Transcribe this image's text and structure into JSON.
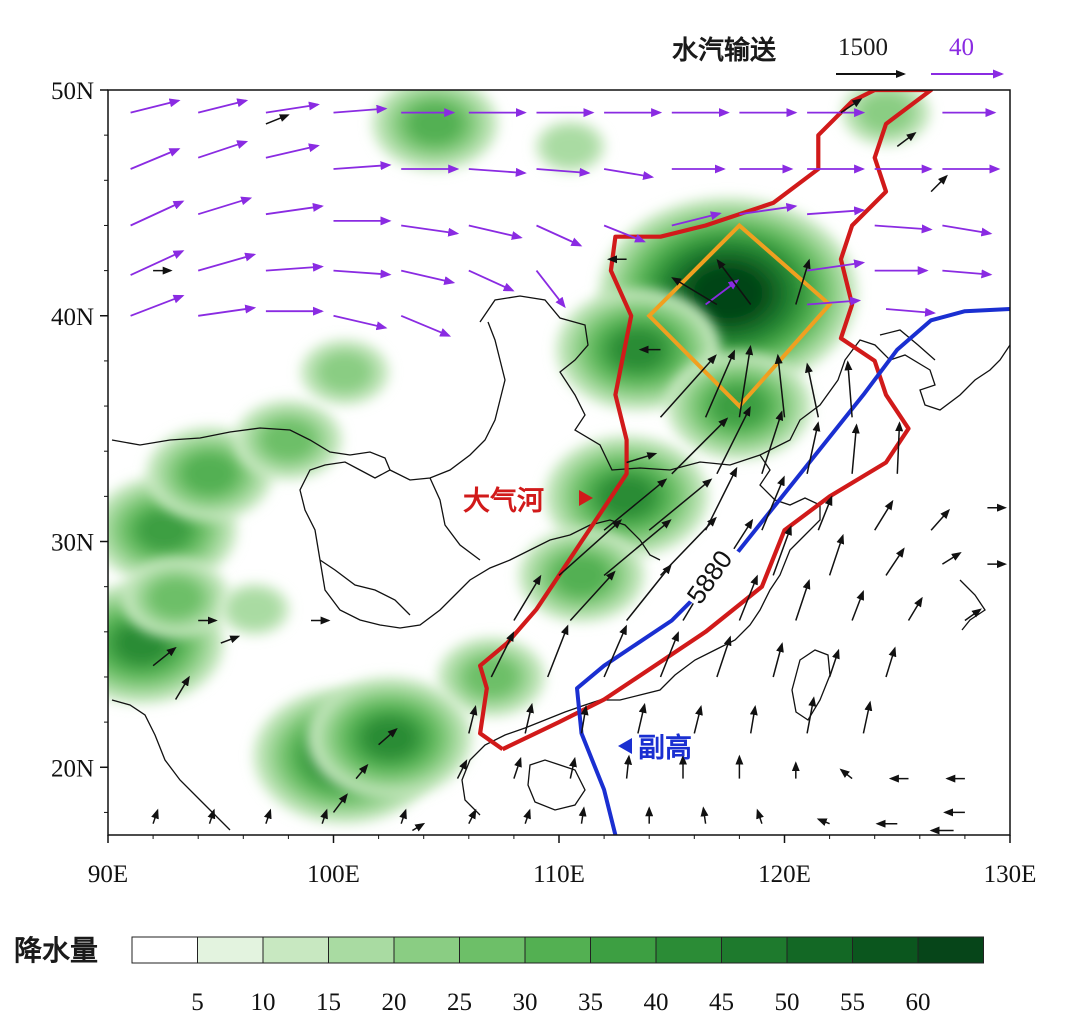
{
  "reference": {
    "title": "水汽输送",
    "black_value": "1500",
    "purple_value": "40",
    "black_color": "#111111",
    "purple_color": "#8a2be2"
  },
  "axes": {
    "lon_min": 90,
    "lon_max": 130,
    "lat_min": 17,
    "lat_max": 50,
    "x_ticks": [
      {
        "value": 90,
        "label": "90E"
      },
      {
        "value": 100,
        "label": "100E"
      },
      {
        "value": 110,
        "label": "110E"
      },
      {
        "value": 120,
        "label": "120E"
      },
      {
        "value": 130,
        "label": "130E"
      }
    ],
    "y_ticks": [
      {
        "value": 20,
        "label": "20N"
      },
      {
        "value": 30,
        "label": "30N"
      },
      {
        "value": 40,
        "label": "40N"
      },
      {
        "value": 50,
        "label": "50N"
      }
    ]
  },
  "annotations": {
    "atmospheric_river": "大气河",
    "subtropical_high": "副高",
    "contour_value": "5880"
  },
  "colors": {
    "atmospheric_river": "#d11a1a",
    "subtropical_high": "#1a2fd1",
    "focus_box": "#f0a020",
    "coastline": "#111111"
  },
  "colorbar": {
    "title": "降水量",
    "labels": [
      "5",
      "10",
      "15",
      "20",
      "25",
      "30",
      "35",
      "40",
      "45",
      "50",
      "55",
      "60"
    ],
    "colors": [
      "#ffffff",
      "#e3f3df",
      "#c8e8c1",
      "#a9dba2",
      "#8acd83",
      "#6dbf68",
      "#53b052",
      "#3d9f42",
      "#2b8c36",
      "#1e7a2d",
      "#136825",
      "#0b561e",
      "#064519"
    ]
  },
  "chart_data": {
    "type": "map",
    "precipitation_centers": [
      {
        "lon": 117.5,
        "lat": 41.0,
        "level": 60
      },
      {
        "lon": 113.5,
        "lat": 38.5,
        "level": 35
      },
      {
        "lon": 118.0,
        "lat": 36.0,
        "level": 30
      },
      {
        "lon": 113.0,
        "lat": 32.0,
        "level": 35
      },
      {
        "lon": 111.0,
        "lat": 28.5,
        "level": 25
      },
      {
        "lon": 107.0,
        "lat": 24.0,
        "level": 20
      },
      {
        "lon": 100.5,
        "lat": 20.5,
        "level": 40
      },
      {
        "lon": 102.5,
        "lat": 21.3,
        "level": 35
      },
      {
        "lon": 92.5,
        "lat": 30.5,
        "level": 30
      },
      {
        "lon": 94.5,
        "lat": 33.0,
        "level": 25
      },
      {
        "lon": 98.0,
        "lat": 34.5,
        "level": 20
      },
      {
        "lon": 100.5,
        "lat": 37.5,
        "level": 15
      },
      {
        "lon": 91.5,
        "lat": 25.5,
        "level": 35
      },
      {
        "lon": 93.0,
        "lat": 27.5,
        "level": 20
      },
      {
        "lon": 104.5,
        "lat": 48.5,
        "level": 25
      },
      {
        "lon": 110.5,
        "lat": 47.5,
        "level": 10
      },
      {
        "lon": 124.5,
        "lat": 49.0,
        "level": 15
      },
      {
        "lon": 96.5,
        "lat": 27.0,
        "level": 10
      }
    ],
    "atmospheric_river_outline": [
      [
        107.5,
        20.8
      ],
      [
        106.5,
        21.5
      ],
      [
        106.8,
        23.5
      ],
      [
        106.5,
        24.5
      ],
      [
        107.7,
        25.5
      ],
      [
        109.0,
        27.0
      ],
      [
        110.0,
        28.5
      ],
      [
        111.0,
        30.0
      ],
      [
        112.0,
        31.5
      ],
      [
        113.0,
        33.0
      ],
      [
        113.0,
        34.5
      ],
      [
        112.5,
        36.5
      ],
      [
        112.8,
        38.0
      ],
      [
        113.2,
        40.0
      ],
      [
        112.3,
        42.0
      ],
      [
        112.5,
        43.5
      ],
      [
        114.5,
        43.5
      ],
      [
        116.5,
        44.0
      ],
      [
        119.5,
        45.0
      ],
      [
        121.5,
        46.5
      ],
      [
        121.5,
        48.0
      ],
      [
        123.0,
        49.5
      ],
      [
        124.0,
        50.0
      ],
      [
        126.5,
        50.0
      ],
      [
        124.5,
        48.5
      ],
      [
        124.0,
        47.0
      ],
      [
        124.5,
        45.5
      ],
      [
        123.0,
        44.0
      ],
      [
        122.5,
        42.5
      ],
      [
        123.0,
        40.5
      ],
      [
        122.5,
        39.0
      ],
      [
        124.0,
        38.0
      ],
      [
        124.5,
        36.5
      ],
      [
        125.5,
        35.0
      ],
      [
        124.5,
        33.5
      ],
      [
        122.0,
        32.0
      ],
      [
        120.0,
        30.5
      ],
      [
        119.0,
        28.0
      ],
      [
        116.5,
        26.0
      ],
      [
        113.5,
        24.0
      ],
      [
        112.0,
        23.0
      ],
      [
        110.0,
        22.0
      ],
      [
        107.5,
        20.8
      ]
    ],
    "subtropical_high_5880": [
      [
        112.5,
        17.0
      ],
      [
        112.0,
        19.0
      ],
      [
        111.0,
        21.5
      ],
      [
        110.8,
        23.5
      ],
      [
        112.0,
        24.5
      ],
      [
        115.0,
        26.5
      ],
      [
        117.5,
        29.0
      ],
      [
        119.5,
        31.5
      ],
      [
        121.5,
        34.0
      ],
      [
        123.5,
        36.5
      ],
      [
        125.0,
        38.5
      ],
      [
        126.5,
        39.8
      ],
      [
        128.0,
        40.2
      ],
      [
        130.0,
        40.3
      ]
    ],
    "focus_box": [
      [
        114.0,
        40.0
      ],
      [
        118.0,
        44.0
      ],
      [
        122.0,
        40.5
      ],
      [
        118.0,
        36.0
      ]
    ],
    "vectors_purple": [
      [
        91,
        49,
        1.2,
        0.3
      ],
      [
        94,
        49,
        1.2,
        0.3
      ],
      [
        97,
        49,
        1.3,
        0.2
      ],
      [
        100,
        49,
        1.3,
        0.1
      ],
      [
        103,
        49,
        1.3,
        0.0
      ],
      [
        106,
        49,
        1.4,
        0.0
      ],
      [
        109,
        49,
        1.4,
        0.0
      ],
      [
        112,
        49,
        1.4,
        0.0
      ],
      [
        115,
        49,
        1.4,
        0.0
      ],
      [
        118,
        49,
        1.4,
        0.0
      ],
      [
        121,
        49,
        1.4,
        0.0
      ],
      [
        127,
        49,
        1.3,
        0.0
      ],
      [
        91,
        46.5,
        1.2,
        0.5
      ],
      [
        94,
        47,
        1.2,
        0.4
      ],
      [
        97,
        47,
        1.3,
        0.3
      ],
      [
        100,
        46.5,
        1.4,
        0.1
      ],
      [
        103,
        46.5,
        1.4,
        0.0
      ],
      [
        106,
        46.5,
        1.4,
        -0.1
      ],
      [
        109,
        46.5,
        1.3,
        -0.1
      ],
      [
        112,
        46.5,
        1.2,
        -0.2
      ],
      [
        115,
        46.5,
        1.3,
        0.0
      ],
      [
        118,
        46.5,
        1.3,
        0.0
      ],
      [
        121,
        46.5,
        1.4,
        0.0
      ],
      [
        124,
        46.5,
        1.4,
        0.0
      ],
      [
        127,
        46.5,
        1.4,
        0.0
      ],
      [
        91,
        44,
        1.3,
        0.6
      ],
      [
        94,
        44.5,
        1.3,
        0.4
      ],
      [
        97,
        44.5,
        1.4,
        0.2
      ],
      [
        100,
        44.2,
        1.4,
        0.0
      ],
      [
        103,
        44,
        1.4,
        -0.2
      ],
      [
        106,
        44,
        1.3,
        -0.3
      ],
      [
        109,
        44,
        1.1,
        -0.5
      ],
      [
        112,
        44,
        1.0,
        -0.4
      ],
      [
        115,
        44,
        1.2,
        0.3
      ],
      [
        118,
        44.5,
        1.4,
        0.2
      ],
      [
        121,
        44.5,
        1.4,
        0.1
      ],
      [
        124,
        44,
        1.4,
        -0.1
      ],
      [
        127,
        44,
        1.2,
        -0.2
      ],
      [
        91,
        41.8,
        1.3,
        0.6
      ],
      [
        94,
        42,
        1.4,
        0.4
      ],
      [
        97,
        42,
        1.4,
        0.1
      ],
      [
        100,
        42,
        1.4,
        -0.1
      ],
      [
        103,
        42,
        1.3,
        -0.3
      ],
      [
        106,
        42,
        1.1,
        -0.5
      ],
      [
        109,
        42,
        0.7,
        -0.9
      ],
      [
        121,
        42,
        1.4,
        0.2
      ],
      [
        124,
        42,
        1.3,
        0.0
      ],
      [
        127,
        42,
        1.2,
        -0.1
      ],
      [
        91,
        40,
        1.3,
        0.5
      ],
      [
        94,
        40,
        1.4,
        0.2
      ],
      [
        97,
        40.2,
        1.4,
        0.0
      ],
      [
        100,
        40,
        1.3,
        -0.3
      ],
      [
        103,
        40,
        1.2,
        -0.5
      ],
      [
        116.5,
        40.5,
        0.8,
        0.6
      ],
      [
        121,
        40.5,
        1.3,
        0.1
      ],
      [
        124.5,
        40.3,
        1.2,
        -0.1
      ]
    ],
    "vectors_black": [
      [
        97,
        48.5,
        1.0,
        0.4
      ],
      [
        113,
        42.5,
        -0.8,
        0.0
      ],
      [
        92,
        42,
        0.8,
        0.0
      ],
      [
        114.5,
        38.5,
        -0.9,
        0.0
      ],
      [
        117,
        40.5,
        -2.0,
        1.2
      ],
      [
        118.5,
        40.5,
        -1.5,
        2.0
      ],
      [
        120.5,
        40.5,
        0.6,
        2.0
      ],
      [
        114.5,
        35.5,
        2.5,
        2.8
      ],
      [
        116.5,
        35.5,
        1.3,
        3.0
      ],
      [
        118,
        35.5,
        0.5,
        3.2
      ],
      [
        120,
        35.5,
        -0.3,
        2.8
      ],
      [
        121.5,
        35.5,
        -0.5,
        2.4
      ],
      [
        123,
        35.5,
        -0.2,
        2.5
      ],
      [
        113,
        33.5,
        1.3,
        0.4
      ],
      [
        115,
        33,
        2.5,
        2.5
      ],
      [
        117,
        33,
        1.5,
        3.0
      ],
      [
        119,
        33,
        0.9,
        2.8
      ],
      [
        121,
        33,
        0.5,
        2.3
      ],
      [
        123,
        33,
        0.2,
        2.2
      ],
      [
        125,
        33,
        0.1,
        2.3
      ],
      [
        112,
        30.5,
        2.8,
        2.3
      ],
      [
        114,
        30.5,
        2.8,
        2.3
      ],
      [
        116.5,
        30.5,
        1.4,
        2.8
      ],
      [
        119,
        30.5,
        1.0,
        2.4
      ],
      [
        121.5,
        30.5,
        0.6,
        1.5
      ],
      [
        124,
        30.5,
        0.8,
        1.3
      ],
      [
        126.5,
        30.5,
        0.8,
        0.9
      ],
      [
        129,
        31.5,
        0.8,
        0.0
      ],
      [
        110,
        28.5,
        2.8,
        2.5
      ],
      [
        112,
        28.5,
        3.0,
        2.5
      ],
      [
        114.5,
        28.5,
        2.5,
        2.6
      ],
      [
        117,
        28.5,
        1.6,
        2.5
      ],
      [
        119.5,
        28.5,
        0.8,
        2.2
      ],
      [
        122,
        28.5,
        0.6,
        1.8
      ],
      [
        124.5,
        28.5,
        0.8,
        1.2
      ],
      [
        127,
        29,
        0.8,
        0.5
      ],
      [
        129,
        29,
        0.8,
        0.0
      ],
      [
        92,
        24.5,
        1.0,
        0.8
      ],
      [
        94,
        26.5,
        0.8,
        0.0
      ],
      [
        93,
        23,
        0.6,
        1.0
      ],
      [
        95,
        25.5,
        0.8,
        0.3
      ],
      [
        99,
        26.5,
        0.8,
        0.0
      ],
      [
        108,
        26.5,
        1.2,
        2.0
      ],
      [
        110.5,
        26.5,
        2.0,
        2.2
      ],
      [
        113,
        26.5,
        2.0,
        2.5
      ],
      [
        115.5,
        26.5,
        1.5,
        2.5
      ],
      [
        118,
        26.5,
        0.8,
        2.0
      ],
      [
        120.5,
        26.5,
        0.6,
        1.8
      ],
      [
        123,
        26.5,
        0.5,
        1.3
      ],
      [
        125.5,
        26.5,
        0.6,
        1.0
      ],
      [
        128,
        26.5,
        0.7,
        0.5
      ],
      [
        107,
        24,
        1.0,
        2.0
      ],
      [
        109.5,
        24,
        0.9,
        2.3
      ],
      [
        112,
        24,
        1.0,
        2.3
      ],
      [
        114.5,
        24,
        0.8,
        2.0
      ],
      [
        117,
        24,
        0.6,
        1.8
      ],
      [
        119.5,
        24,
        0.4,
        1.5
      ],
      [
        122,
        24,
        0.4,
        1.2
      ],
      [
        124.5,
        24,
        0.4,
        1.3
      ],
      [
        106,
        21.5,
        0.3,
        1.2
      ],
      [
        108.5,
        21.5,
        0.3,
        1.3
      ],
      [
        111,
        21.5,
        0.2,
        1.2
      ],
      [
        113.5,
        21.5,
        0.3,
        1.3
      ],
      [
        116,
        21.5,
        0.3,
        1.2
      ],
      [
        118.5,
        21.5,
        0.2,
        1.2
      ],
      [
        121,
        21.5,
        0.3,
        1.6
      ],
      [
        123.5,
        21.5,
        0.3,
        1.4
      ],
      [
        105.5,
        19.5,
        0.4,
        0.8
      ],
      [
        108,
        19.5,
        0.3,
        0.9
      ],
      [
        110.5,
        19.5,
        0.2,
        0.9
      ],
      [
        113,
        19.5,
        0.1,
        1.0
      ],
      [
        115.5,
        19.5,
        0.0,
        1.0
      ],
      [
        118,
        19.5,
        0.0,
        1.0
      ],
      [
        120.5,
        19.5,
        0.0,
        0.7
      ],
      [
        123,
        19.5,
        -0.5,
        0.4
      ],
      [
        125.5,
        19.5,
        -0.8,
        0.0
      ],
      [
        128,
        19.5,
        -0.8,
        0.0
      ],
      [
        128,
        18,
        -0.9,
        0.0
      ],
      [
        102,
        21,
        0.8,
        0.7
      ],
      [
        101,
        19.5,
        0.5,
        0.6
      ],
      [
        100,
        18,
        0.6,
        0.8
      ],
      [
        92,
        17.5,
        0.2,
        0.6
      ],
      [
        94.5,
        17.5,
        0.2,
        0.6
      ],
      [
        97,
        17.5,
        0.2,
        0.6
      ],
      [
        99.5,
        17.5,
        0.2,
        0.6
      ],
      [
        103,
        17.5,
        0.2,
        0.6
      ],
      [
        106,
        17.5,
        0.3,
        0.6
      ],
      [
        108.5,
        17.5,
        0.2,
        0.6
      ],
      [
        111,
        17.5,
        0.1,
        0.7
      ],
      [
        114,
        17.5,
        0.0,
        0.7
      ],
      [
        116.5,
        17.5,
        -0.1,
        0.7
      ],
      [
        119,
        17.5,
        -0.2,
        0.6
      ],
      [
        122,
        17.5,
        -0.5,
        0.2
      ],
      [
        125,
        17.5,
        -0.9,
        0.0
      ],
      [
        127.5,
        17.2,
        -1.0,
        0.0
      ],
      [
        103.5,
        17.2,
        0.5,
        0.3
      ],
      [
        122.5,
        49,
        0.9,
        0.6
      ],
      [
        125,
        47.5,
        0.8,
        0.6
      ],
      [
        126.5,
        45.5,
        0.7,
        0.7
      ]
    ]
  }
}
